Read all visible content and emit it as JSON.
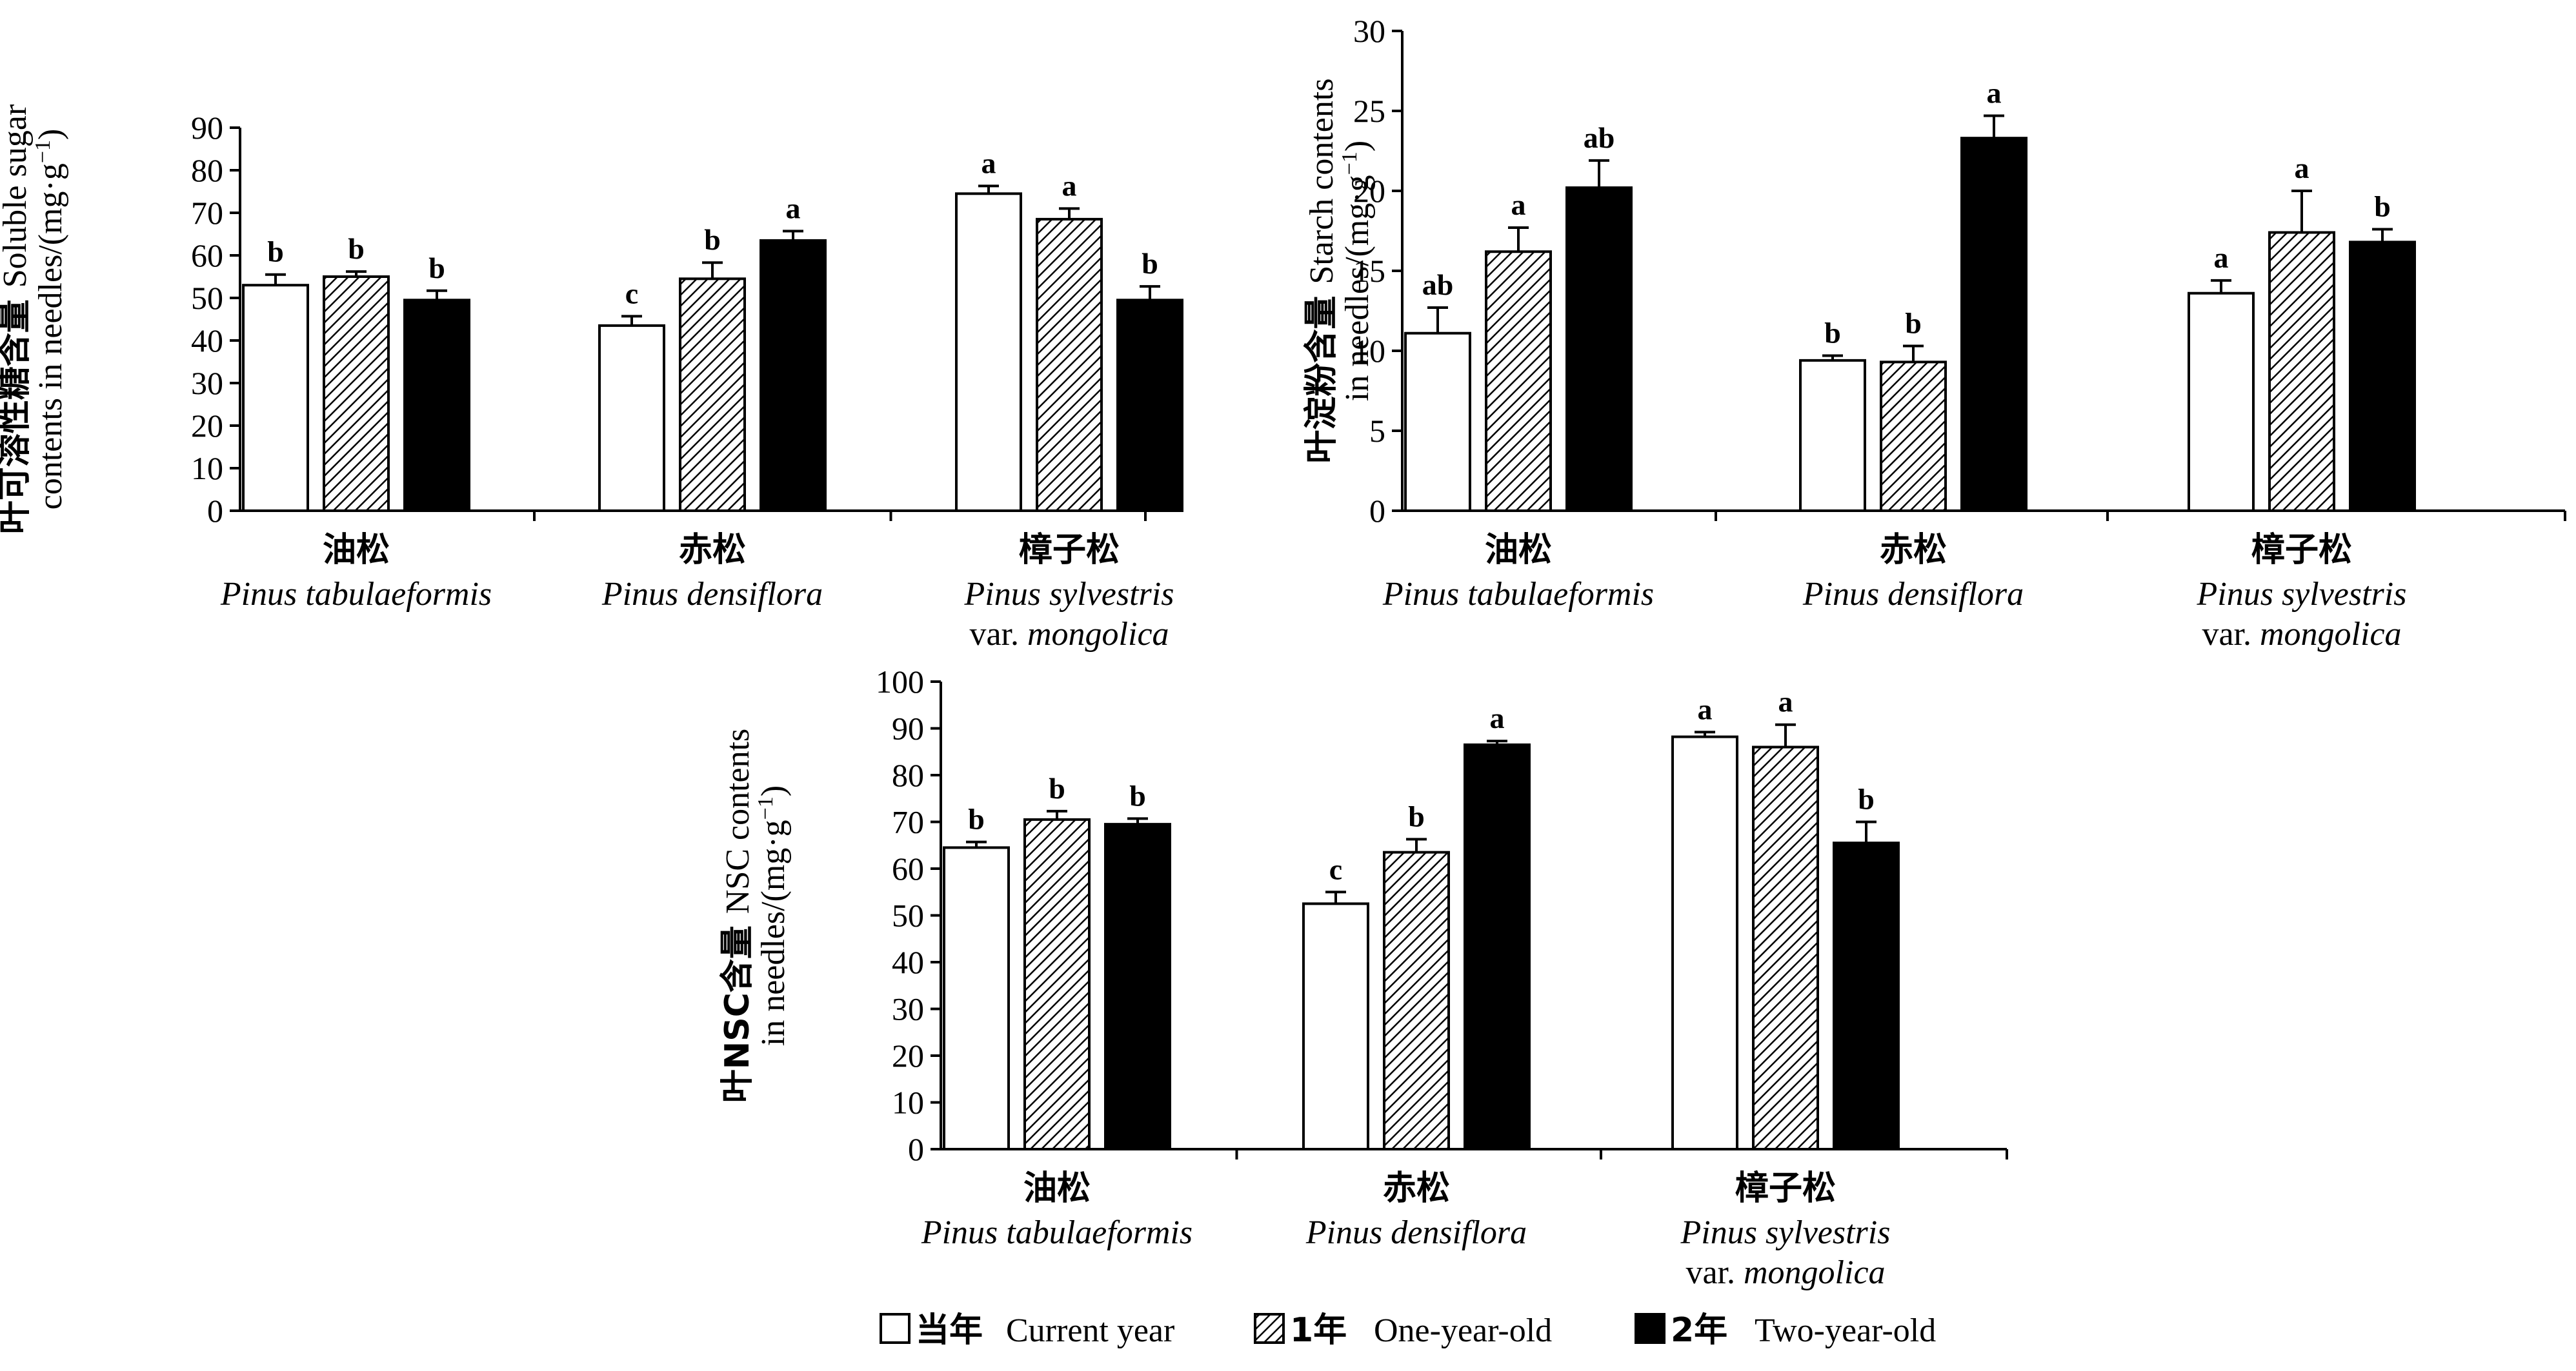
{
  "chart_data": [
    {
      "type": "bar",
      "ylabel_cn": "叶可溶性糖含量",
      "ylabel_line1": "Soluble sugar",
      "ylabel_line2": "contents in needles/(mg·g",
      "ylabel_sup": "−1",
      "ylabel_close": ")",
      "ylim": [
        0,
        90
      ],
      "yticks": [
        0,
        10,
        20,
        30,
        40,
        50,
        60,
        70,
        80,
        90
      ],
      "categories": [
        {
          "cn": "油松",
          "latin": "Pinus tabulaeformis",
          "latin2_plain": "",
          "latin2_italic": ""
        },
        {
          "cn": "赤松",
          "latin": "Pinus densiflora",
          "latin2_plain": "",
          "latin2_italic": ""
        },
        {
          "cn": "樟子松",
          "latin": "Pinus sylvestris",
          "latin2_plain": "var. ",
          "latin2_italic": "mongolica"
        }
      ],
      "series": [
        {
          "name": "当年 Current year",
          "values": [
            53,
            43.5,
            74.5
          ],
          "errors": [
            2.5,
            2.2,
            1.8
          ],
          "letters": [
            "b",
            "c",
            "a"
          ]
        },
        {
          "name": "1年 One-year-old",
          "values": [
            55,
            54.5,
            68.5
          ],
          "errors": [
            1.2,
            3.8,
            2.5
          ],
          "letters": [
            "b",
            "b",
            "a"
          ]
        },
        {
          "name": "2年 Two-year-old",
          "values": [
            49.5,
            63.5,
            49.5
          ],
          "errors": [
            2.2,
            2.2,
            3.2
          ],
          "letters": [
            "b",
            "a",
            "b"
          ]
        }
      ]
    },
    {
      "type": "bar",
      "ylabel_cn": "叶淀粉含量",
      "ylabel_line1": "Starch contents",
      "ylabel_line2": "in needles/(mg·g",
      "ylabel_sup": "−1",
      "ylabel_close": ")",
      "ylim": [
        0,
        30
      ],
      "yticks": [
        0,
        5,
        10,
        15,
        20,
        25,
        30
      ],
      "categories": [
        {
          "cn": "油松",
          "latin": "Pinus tabulaeformis",
          "latin2_plain": "",
          "latin2_italic": ""
        },
        {
          "cn": "赤松",
          "latin": "Pinus densiflora",
          "latin2_plain": "",
          "latin2_italic": ""
        },
        {
          "cn": "樟子松",
          "latin": "Pinus sylvestris",
          "latin2_plain": "var. ",
          "latin2_italic": "mongolica"
        }
      ],
      "series": [
        {
          "name": "当年 Current year",
          "values": [
            11.1,
            9.4,
            13.6
          ],
          "errors": [
            1.6,
            0.3,
            0.8
          ],
          "letters": [
            "ab",
            "b",
            "a"
          ]
        },
        {
          "name": "1年 One-year-old",
          "values": [
            16.2,
            9.3,
            17.4
          ],
          "errors": [
            1.5,
            1.0,
            2.6
          ],
          "letters": [
            "a",
            "b",
            "a"
          ]
        },
        {
          "name": "2年 Two-year-old",
          "values": [
            20.2,
            23.3,
            16.8
          ],
          "errors": [
            1.7,
            1.4,
            0.8
          ],
          "letters": [
            "ab",
            "a",
            "b"
          ]
        }
      ]
    },
    {
      "type": "bar",
      "ylabel_cn": "叶NSC含量",
      "ylabel_line1": "NSC contents",
      "ylabel_line2": "in needles/(mg·g",
      "ylabel_sup": "−1",
      "ylabel_close": ")",
      "ylim": [
        0,
        100
      ],
      "yticks": [
        0,
        10,
        20,
        30,
        40,
        50,
        60,
        70,
        80,
        90,
        100
      ],
      "categories": [
        {
          "cn": "油松",
          "latin": "Pinus tabulaeformis",
          "latin2_plain": "",
          "latin2_italic": ""
        },
        {
          "cn": "赤松",
          "latin": "Pinus densiflora",
          "latin2_plain": "",
          "latin2_italic": ""
        },
        {
          "cn": "樟子松",
          "latin": "Pinus sylvestris",
          "latin2_plain": "var. ",
          "latin2_italic": "mongolica"
        }
      ],
      "series": [
        {
          "name": "当年 Current year",
          "values": [
            64.5,
            52.5,
            88.2
          ],
          "errors": [
            1.2,
            2.5,
            1.0
          ],
          "letters": [
            "b",
            "c",
            "a"
          ]
        },
        {
          "name": "1年 One-year-old",
          "values": [
            70.5,
            63.5,
            86.0
          ],
          "errors": [
            1.8,
            2.8,
            4.8
          ],
          "letters": [
            "b",
            "b",
            "a"
          ]
        },
        {
          "name": "2年 Two-year-old",
          "values": [
            69.5,
            86.5,
            65.5
          ],
          "errors": [
            1.2,
            0.8,
            4.5
          ],
          "letters": [
            "b",
            "a",
            "b"
          ]
        }
      ]
    }
  ],
  "legend": [
    {
      "cn": "当年",
      "en": "Current year",
      "fill": "white"
    },
    {
      "cn": "1年",
      "en": "One-year-old",
      "fill": "hatch"
    },
    {
      "cn": "2年",
      "en": "Two-year-old",
      "fill": "black"
    }
  ],
  "colors": {
    "bar_stroke": "#000000",
    "black_fill": "#000000",
    "white_fill": "#ffffff"
  }
}
